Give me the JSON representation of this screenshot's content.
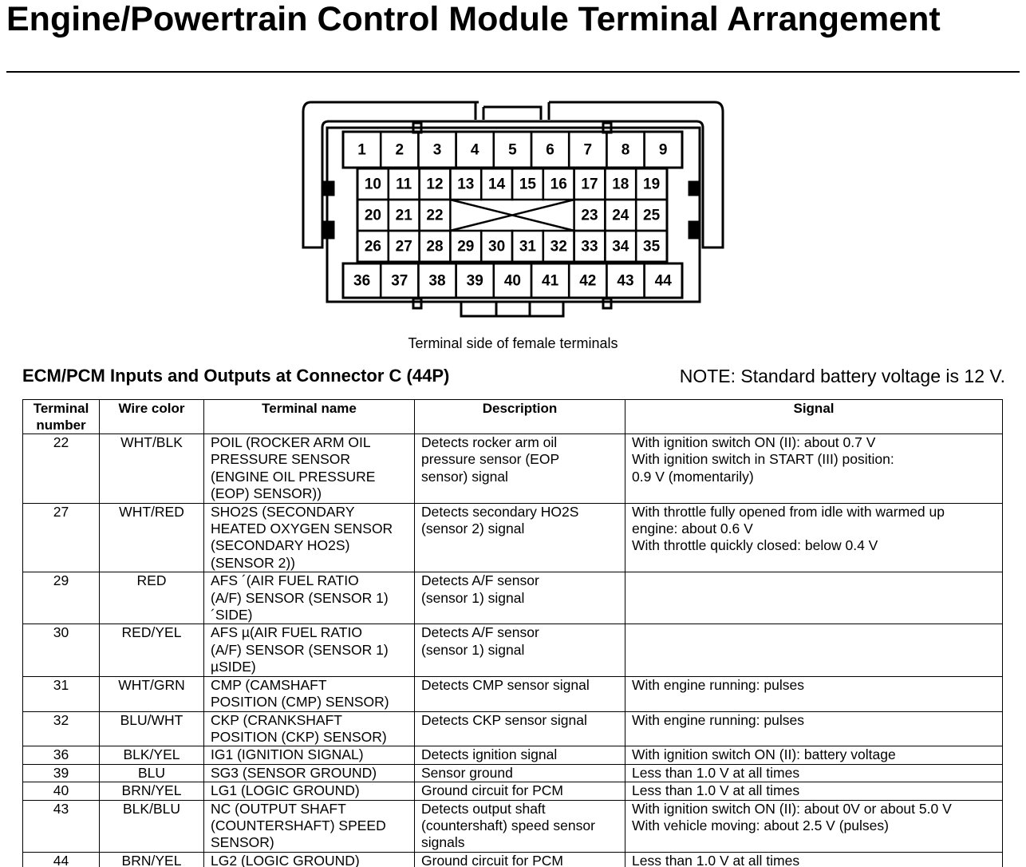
{
  "title": "Engine/Powertrain Control Module Terminal Arrangement",
  "connector": {
    "rows": [
      [
        "1",
        "2",
        "3",
        "4",
        "5",
        "6",
        "7",
        "8",
        "9"
      ],
      [
        "10",
        "11",
        "12",
        "13",
        "14",
        "15",
        "16",
        "17",
        "18",
        "19"
      ],
      [
        "20",
        "21",
        "22",
        "23",
        "24",
        "25"
      ],
      [
        "26",
        "27",
        "28",
        "29",
        "30",
        "31",
        "32",
        "33",
        "34",
        "35"
      ],
      [
        "36",
        "37",
        "38",
        "39",
        "40",
        "41",
        "42",
        "43",
        "44"
      ]
    ],
    "caption": "Terminal side of female terminals"
  },
  "table_title": "ECM/PCM Inputs and Outputs at Connector C (44P)",
  "note": "NOTE: Standard battery voltage is 12 V.",
  "table": {
    "headers": [
      "Terminal\nnumber",
      "Wire color",
      "Terminal name",
      "Description",
      "Signal"
    ],
    "rows": [
      [
        "22",
        "WHT/BLK",
        "POIL (ROCKER ARM OIL\nPRESSURE SENSOR\n(ENGINE OIL PRESSURE\n(EOP) SENSOR))",
        "Detects rocker arm oil\npressure sensor (EOP\nsensor) signal",
        "With ignition switch ON (II): about 0.7 V\nWith ignition switch in START (III) position:\n0.9 V (momentarily)"
      ],
      [
        "27",
        "WHT/RED",
        "SHO2S (SECONDARY\nHEATED OXYGEN SENSOR\n(SECONDARY HO2S)\n(SENSOR 2))",
        "Detects secondary HO2S\n(sensor 2) signal",
        "With throttle fully opened from idle with warmed up\nengine: about 0.6 V\nWith throttle quickly closed: below 0.4 V"
      ],
      [
        "29",
        "RED",
        "AFS ´(AIR FUEL RATIO\n(A/F) SENSOR (SENSOR 1)\n´SIDE)",
        "Detects A/F sensor\n(sensor 1) signal",
        ""
      ],
      [
        "30",
        "RED/YEL",
        "AFS µ(AIR FUEL RATIO\n(A/F) SENSOR (SENSOR 1)\nµSIDE)",
        "Detects A/F sensor\n(sensor 1) signal",
        ""
      ],
      [
        "31",
        "WHT/GRN",
        "CMP (CAMSHAFT\nPOSITION (CMP) SENSOR)",
        "Detects CMP sensor signal",
        "With engine running: pulses"
      ],
      [
        "32",
        "BLU/WHT",
        "CKP (CRANKSHAFT\nPOSITION (CKP) SENSOR)",
        "Detects CKP sensor signal",
        "With engine running: pulses"
      ],
      [
        "36",
        "BLK/YEL",
        "IG1 (IGNITION SIGNAL)",
        "Detects ignition signal",
        "With ignition switch ON (II): battery voltage"
      ],
      [
        "39",
        "BLU",
        "SG3 (SENSOR GROUND)",
        "Sensor ground",
        "Less than 1.0 V at all times"
      ],
      [
        "40",
        "BRN/YEL",
        "LG1 (LOGIC GROUND)",
        "Ground circuit for PCM",
        "Less than 1.0 V at all times"
      ],
      [
        "43",
        "BLK/BLU",
        "NC (OUTPUT SHAFT\n(COUNTERSHAFT) SPEED\nSENSOR)",
        "Detects output shaft\n(countershaft) speed sensor\nsignals",
        "With ignition switch ON (II): about 0V or about 5.0 V\nWith vehicle moving: about 2.5 V (pulses)"
      ],
      [
        "44",
        "BRN/YEL",
        "LG2 (LOGIC GROUND)",
        "Ground circuit for PCM",
        "Less than 1.0 V at all times"
      ]
    ]
  }
}
